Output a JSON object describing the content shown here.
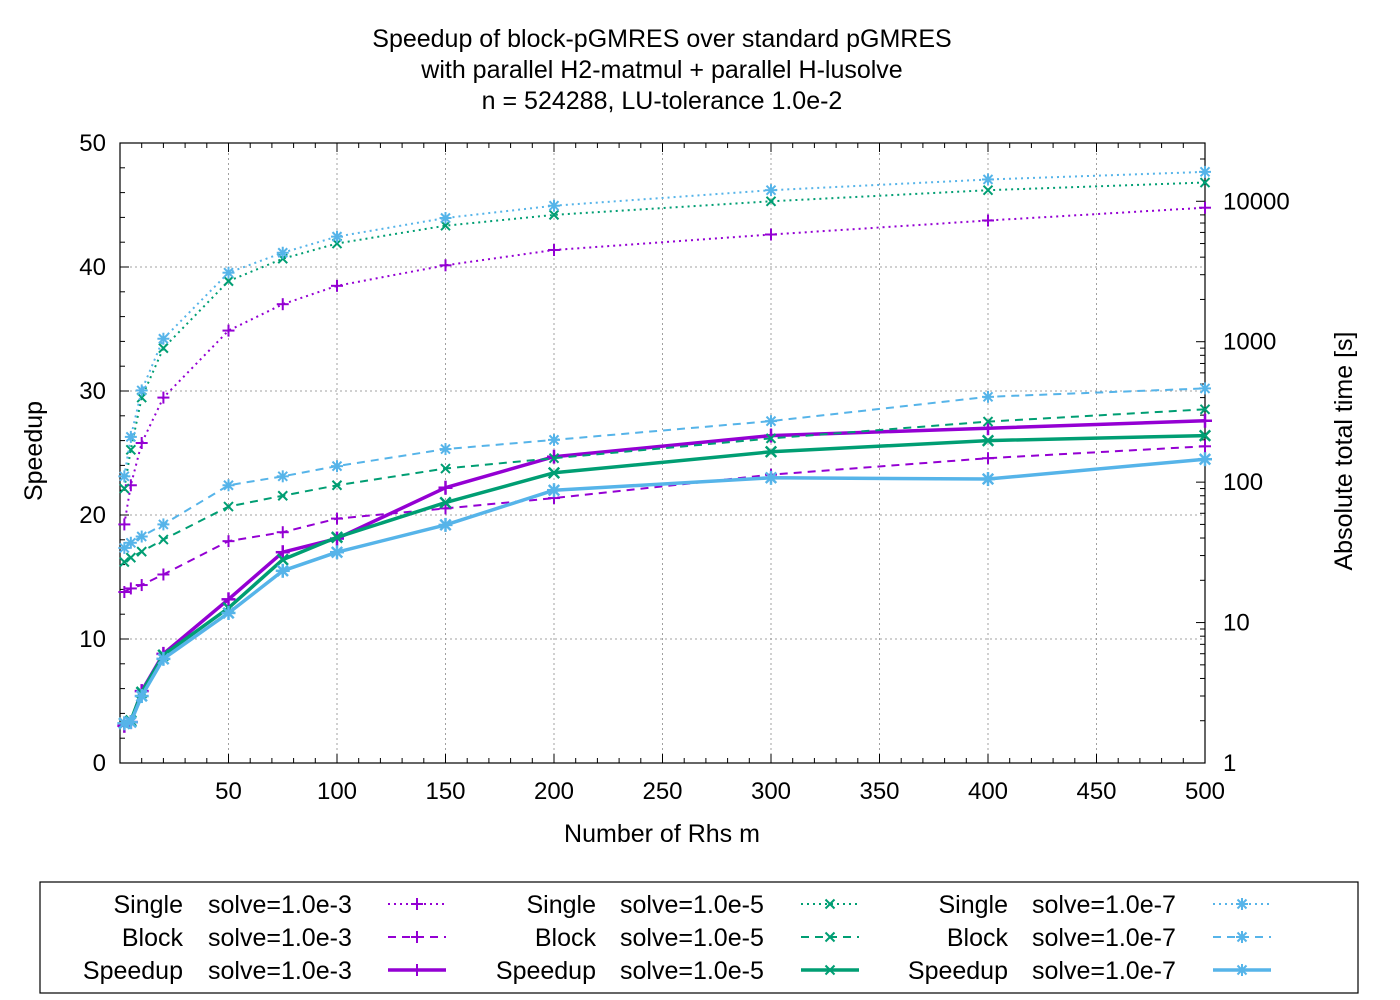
{
  "chart_data": {
    "type": "line",
    "title_lines": [
      "Speedup of block-pGMRES over standard pGMRES",
      "with parallel H2-matmul + parallel H-lusolve",
      "n = 524288, LU-tolerance 1.0e-2"
    ],
    "xlabel": "Number of Rhs m",
    "ylabel": "Speedup",
    "y2label": "Absolute total time [s]",
    "xlim": [
      0,
      500
    ],
    "ylim": [
      0,
      50
    ],
    "y2lim": [
      1,
      26000
    ],
    "y2scale": "log",
    "grid": true,
    "x_ticks": [
      "50",
      "100",
      "150",
      "200",
      "250",
      "300",
      "350",
      "400",
      "450",
      "500"
    ],
    "x_tick_values": [
      50,
      100,
      150,
      200,
      250,
      300,
      350,
      400,
      450,
      500
    ],
    "y_ticks": [
      "0",
      "10",
      "20",
      "30",
      "40",
      "50"
    ],
    "y_tick_values": [
      0,
      10,
      20,
      30,
      40,
      50
    ],
    "y2_ticks": [
      "1",
      "10",
      "100",
      "1000",
      "10000"
    ],
    "y2_tick_values": [
      1,
      10,
      100,
      1000,
      10000
    ],
    "x": [
      2,
      5,
      10,
      20,
      50,
      75,
      100,
      150,
      200,
      300,
      400,
      500
    ],
    "legend_position": "below",
    "colors": {
      "tol3": "#9400d3",
      "tol5": "#009e73",
      "tol7": "#56b4e9",
      "grid": "#a0a0a0",
      "axis": "#000000"
    },
    "series": [
      {
        "name": "Single",
        "tol": "solve=1.0e-3",
        "axis": "y2",
        "style": "dotted",
        "marker": "plus",
        "color": "tol3",
        "values": [
          50,
          95,
          190,
          400,
          1200,
          1850,
          2500,
          3500,
          4500,
          5800,
          7300,
          9000
        ]
      },
      {
        "name": "Block",
        "tol": "solve=1.0e-3",
        "axis": "y2",
        "style": "dashed",
        "marker": "plus",
        "color": "tol3",
        "values": [
          16.5,
          17.5,
          18.5,
          22,
          38,
          44,
          55,
          65,
          77,
          113,
          148,
          180
        ]
      },
      {
        "name": "Speedup",
        "tol": "solve=1.0e-3",
        "axis": "y",
        "style": "solid",
        "marker": "plus",
        "color": "tol3",
        "values": [
          3.0,
          3.3,
          5.8,
          8.8,
          13.2,
          17.0,
          18.1,
          22.2,
          24.7,
          26.4,
          27.0,
          27.6
        ]
      },
      {
        "name": "Single",
        "tol": "solve=1.0e-5",
        "axis": "y2",
        "style": "dotted",
        "marker": "x",
        "color": "tol5",
        "values": [
          90,
          170,
          400,
          900,
          2700,
          3900,
          5000,
          6700,
          8000,
          10000,
          12000,
          13600
        ]
      },
      {
        "name": "Block",
        "tol": "solve=1.0e-5",
        "axis": "y2",
        "style": "dashed",
        "marker": "x",
        "color": "tol5",
        "values": [
          27,
          29,
          32,
          39,
          67,
          80,
          95,
          125,
          148,
          205,
          270,
          330
        ]
      },
      {
        "name": "Speedup",
        "tol": "solve=1.0e-5",
        "axis": "y",
        "style": "solid",
        "marker": "x",
        "color": "tol5",
        "values": [
          3.2,
          3.4,
          5.7,
          8.7,
          12.5,
          16.4,
          18.2,
          21.0,
          23.4,
          25.1,
          26.0,
          26.4
        ]
      },
      {
        "name": "Single",
        "tol": "solve=1.0e-7",
        "axis": "y2",
        "style": "dotted",
        "marker": "star",
        "color": "tol7",
        "values": [
          110,
          210,
          450,
          1050,
          3100,
          4300,
          5600,
          7600,
          9300,
          12000,
          14300,
          16200
        ]
      },
      {
        "name": "Block",
        "tol": "solve=1.0e-7",
        "axis": "y2",
        "style": "dashed",
        "marker": "star",
        "color": "tol7",
        "values": [
          34,
          37,
          41,
          50,
          95,
          110,
          130,
          172,
          200,
          272,
          405,
          465
        ]
      },
      {
        "name": "Speedup",
        "tol": "solve=1.0e-7",
        "axis": "y",
        "style": "solid",
        "marker": "star",
        "color": "tol7",
        "values": [
          3.2,
          3.3,
          5.4,
          8.4,
          12.1,
          15.5,
          17.0,
          19.2,
          22.0,
          23.0,
          22.9,
          24.5
        ]
      }
    ]
  }
}
